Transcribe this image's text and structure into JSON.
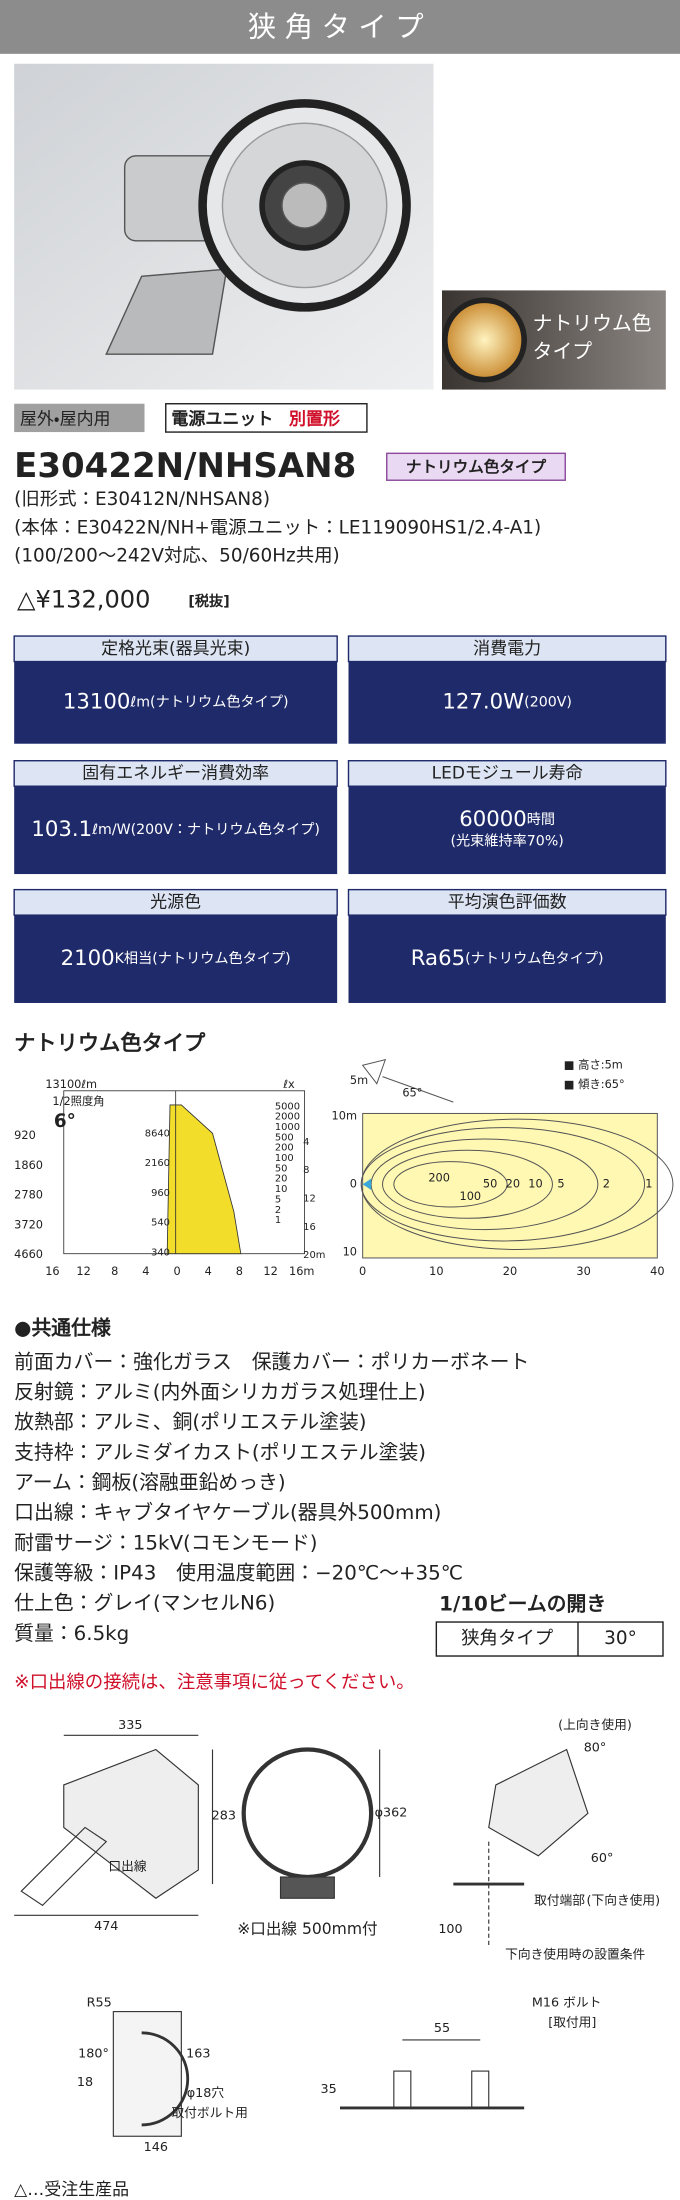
{
  "header": {
    "title": "狭角タイプ"
  },
  "photo": {
    "inset_label": [
      "ナトリウム色",
      "タイプ"
    ]
  },
  "tags": {
    "usage": "屋外・屋内用",
    "power_prefix": "電源ユニット",
    "power_suffix": "別置形"
  },
  "product": {
    "model": "E30422N/NHSAN8",
    "type_tag": "ナトリウム色タイプ",
    "lines": [
      "(旧形式：E30412N/NHSAN8)",
      "(本体：E30422N/NH+電源ユニット：LE119090HS1/2.4-A1)",
      "(100/200〜242V対応、50/60Hz共用)"
    ],
    "price": "△¥132,000",
    "tax": "[税抜]"
  },
  "specs": [
    {
      "label": "定格光束(器具光束)",
      "value": "13100",
      "note": "ℓm(ナトリウム色タイプ)"
    },
    {
      "label": "消費電力",
      "value": "127.0W",
      "note": "(200V)"
    },
    {
      "label": "固有エネルギー消費効率",
      "value": "103.1",
      "note": "ℓm/W(200V：ナトリウム色タイプ)"
    },
    {
      "label": "LEDモジュール寿命",
      "value": "60000",
      "note": "時間",
      "sub": "(光束維持率70%)"
    },
    {
      "label": "光源色",
      "value": "2100",
      "note": "K相当(ナトリウム色タイプ)"
    },
    {
      "label": "平均演色評価数",
      "value": "Ra65",
      "note": "(ナトリウム色タイプ)"
    }
  ],
  "section": {
    "title": "ナトリウム色タイプ"
  },
  "beam_chart": {
    "flux": "13100ℓm",
    "unit": "ℓx",
    "half_angle_label": "1/2照度角",
    "half_angle": "6°",
    "left_labels": [
      "920",
      "1860",
      "2780",
      "3720",
      "4660"
    ],
    "center_labels": [
      "8640",
      "2160",
      "960",
      "540",
      "340"
    ],
    "right_labels": [
      "5000",
      "2000",
      "1000",
      "500",
      "200",
      "100",
      "50",
      "20",
      "10",
      "5",
      "2",
      "1"
    ],
    "distance_labels": [
      "4",
      "8",
      "12",
      "16",
      "20m"
    ],
    "x_labels": [
      "16",
      "12",
      "8",
      "4",
      "0",
      "4",
      "8",
      "12",
      "16m"
    ]
  },
  "iso_chart": {
    "height": "■ 高さ:5m",
    "tilt": "■ 傾き:65°",
    "angle": "65°",
    "pole": "5m",
    "y_labels": [
      "10m",
      "0",
      "10"
    ],
    "x_labels": [
      "0",
      "10",
      "20",
      "30",
      "40"
    ],
    "contours": [
      "200",
      "100",
      "50",
      "20",
      "10",
      "5",
      "2",
      "1"
    ]
  },
  "common": {
    "title": "●共通仕様",
    "items": [
      "前面カバー：強化ガラス　保護カバー：ポリカーボネート",
      "反射鏡：アルミ(内外面シリカガラス処理仕上)",
      "放熱部：アルミ、銅(ポリエステル塗装)",
      "支持枠：アルミダイカスト(ポリエステル塗装)",
      "アーム：鋼板(溶融亜鉛めっき)",
      "口出線：キャブタイヤケーブル(器具外500mm)",
      "耐雷サージ：15kV(コモンモード)",
      "保護等級：IP43　使用温度範囲：−20℃〜+35℃",
      "仕上色：グレイ(マンセルN6)",
      "質量：6.5kg"
    ]
  },
  "beam_table": {
    "title": "1/10ビームの開き",
    "rows": [
      [
        "狭角タイプ",
        "30°"
      ]
    ]
  },
  "warning": "※口出線の接続は、注意事項に従ってください。",
  "drawing": {
    "width": "335",
    "height": "283",
    "total": "474",
    "cable": "口出線",
    "diameter": "φ362",
    "cable_note": "※口出線 500mm付",
    "up_use": "(上向き使用)",
    "up_angle": "80°",
    "down_angle": "60°",
    "mount_end": "取付端部",
    "down_use": "(下向き使用)",
    "clearance": "100",
    "down_condition": "下向き使用時の設置条件",
    "radius": "R55",
    "rotation": "180°",
    "offset": "18",
    "base_h": "163",
    "hole": "φ18穴",
    "hole_note": "取付ボルト用",
    "base_w": "146",
    "bolt_pitch": "55",
    "bolt_h": "35",
    "bolt": "M16 ボルト",
    "bolt_note": "[取付用]"
  },
  "footer": "△…受注生産品"
}
